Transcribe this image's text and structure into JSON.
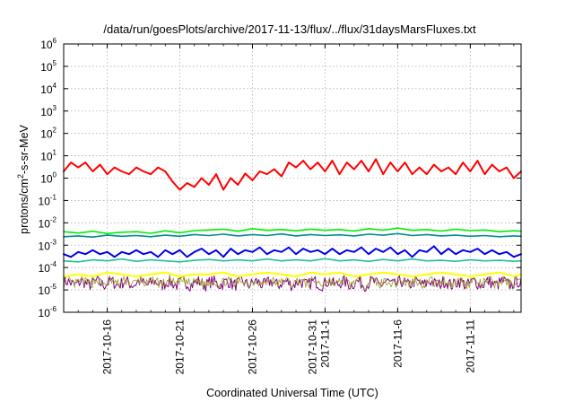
{
  "chart_data": {
    "type": "line",
    "title": "/data/run/goesPlots/archive/2017-11-13/flux/../flux/31daysMarsFluxes.txt",
    "xlabel": "Coordinated Universal Time (UTC)",
    "ylabel_main": "protons/cm",
    "ylabel_sup": "2",
    "ylabel_tail": "-s-sr-MeV",
    "yscale": "log",
    "ylim_exp": [
      -6,
      6
    ],
    "y_tick_base": "10",
    "y_tick_exponents": [
      "-6",
      "-5",
      "-4",
      "-3",
      "-2",
      "-1",
      "0",
      "1",
      "2",
      "3",
      "4",
      "5",
      "6"
    ],
    "x_range_days": [
      0,
      31.5
    ],
    "grid": true,
    "x_ticks": [
      {
        "day": 3,
        "lines": [
          "2017-10-16"
        ]
      },
      {
        "day": 8,
        "lines": [
          "2017-10-21"
        ]
      },
      {
        "day": 13,
        "lines": [
          "2017-10-26"
        ]
      },
      {
        "day": 18,
        "lines": [
          "2017-10-31",
          "2017-11-1"
        ]
      },
      {
        "day": 23,
        "lines": [
          "2017-11-6"
        ]
      },
      {
        "day": 28,
        "lines": [
          "2017-11-11"
        ]
      }
    ],
    "series": [
      {
        "color": "#ff0000",
        "width": 2,
        "x": [
          0,
          0.5,
          1,
          1.5,
          2,
          2.5,
          3,
          3.5,
          4,
          4.5,
          5,
          5.5,
          6,
          6.5,
          7,
          7.5,
          8,
          8.5,
          9,
          9.5,
          10,
          10.5,
          11,
          11.5,
          12,
          12.5,
          13,
          13.5,
          14,
          14.5,
          15,
          15.5,
          16,
          16.5,
          17,
          17.5,
          18,
          18.5,
          19,
          19.5,
          20,
          20.5,
          21,
          21.5,
          22,
          22.5,
          23,
          23.5,
          24,
          24.5,
          25,
          25.5,
          26,
          26.5,
          27,
          27.5,
          28,
          28.5,
          29,
          29.5,
          30,
          30.5,
          31,
          31.5
        ],
        "y": [
          2,
          5,
          3,
          5,
          2,
          4,
          1.5,
          3,
          2,
          1.5,
          3,
          2,
          1.5,
          3,
          2,
          0.7,
          0.3,
          0.6,
          0.4,
          1,
          0.5,
          1.5,
          0.3,
          1,
          0.5,
          1.6,
          0.8,
          2,
          1.5,
          2.5,
          1.2,
          5,
          3,
          6,
          2.5,
          5,
          2,
          6,
          1.5,
          5,
          2.5,
          6,
          2,
          7,
          1.5,
          5,
          2,
          5,
          1.5,
          3,
          1.5,
          4,
          2,
          3,
          1.5,
          5,
          2,
          6,
          1.5,
          4,
          2,
          3,
          1,
          2
        ]
      },
      {
        "color": "#00ee00",
        "width": 1.6,
        "x": [
          0,
          1,
          2,
          3,
          4,
          5,
          6,
          7,
          8,
          9,
          10,
          11,
          12,
          13,
          14,
          15,
          16,
          17,
          18,
          19,
          20,
          21,
          22,
          23,
          24,
          25,
          26,
          27,
          28,
          29,
          30,
          31,
          31.5
        ],
        "y": [
          0.004,
          0.0035,
          0.0042,
          0.0033,
          0.0038,
          0.004,
          0.0034,
          0.0044,
          0.0036,
          0.0045,
          0.0048,
          0.0052,
          0.0042,
          0.0055,
          0.0046,
          0.005,
          0.0044,
          0.0052,
          0.0046,
          0.005,
          0.0043,
          0.0055,
          0.0047,
          0.0058,
          0.0046,
          0.005,
          0.0043,
          0.0052,
          0.0045,
          0.0048,
          0.004,
          0.0044,
          0.0042
        ]
      },
      {
        "color": "#008b8b",
        "width": 1.6,
        "x": [
          0,
          1,
          2,
          3,
          4,
          5,
          6,
          7,
          8,
          9,
          10,
          11,
          12,
          13,
          14,
          15,
          16,
          17,
          18,
          19,
          20,
          21,
          22,
          23,
          24,
          25,
          26,
          27,
          28,
          29,
          30,
          31,
          31.5
        ],
        "y": [
          0.0024,
          0.0026,
          0.0023,
          0.0028,
          0.0025,
          0.0027,
          0.0024,
          0.0028,
          0.0025,
          0.003,
          0.0027,
          0.0031,
          0.0026,
          0.003,
          0.0027,
          0.0032,
          0.0026,
          0.003,
          0.0027,
          0.0029,
          0.0026,
          0.0031,
          0.0028,
          0.0033,
          0.0027,
          0.003,
          0.0026,
          0.0028,
          0.0025,
          0.0027,
          0.0024,
          0.0026,
          0.0025
        ]
      },
      {
        "color": "#0000ee",
        "width": 2,
        "x": [
          0,
          0.5,
          1,
          1.5,
          2,
          2.5,
          3,
          3.5,
          4,
          4.5,
          5,
          5.5,
          6,
          6.5,
          7,
          7.5,
          8,
          8.5,
          9,
          9.5,
          10,
          10.5,
          11,
          11.5,
          12,
          12.5,
          13,
          13.5,
          14,
          14.5,
          15,
          15.5,
          16,
          16.5,
          17,
          17.5,
          18,
          18.5,
          19,
          19.5,
          20,
          20.5,
          21,
          21.5,
          22,
          22.5,
          23,
          23.5,
          24,
          24.5,
          25,
          25.5,
          26,
          26.5,
          27,
          27.5,
          28,
          28.5,
          29,
          29.5,
          30,
          30.5,
          31,
          31.5
        ],
        "y": [
          0.0004,
          0.0003,
          0.0005,
          0.0004,
          0.0006,
          0.0004,
          0.0005,
          0.0003,
          0.0005,
          0.0004,
          0.0006,
          0.0004,
          0.0005,
          0.0003,
          0.0006,
          0.0004,
          0.0006,
          0.0003,
          0.0005,
          0.0007,
          0.0004,
          0.0006,
          0.0003,
          0.0007,
          0.0004,
          0.0006,
          0.0005,
          0.0008,
          0.0004,
          0.0006,
          0.0005,
          0.0008,
          0.0004,
          0.0007,
          0.0005,
          0.0006,
          0.0004,
          0.0007,
          0.0004,
          0.0006,
          0.0005,
          0.0008,
          0.0004,
          0.0007,
          0.0005,
          0.0008,
          0.0004,
          0.0006,
          0.0003,
          0.0006,
          0.0005,
          0.0009,
          0.0004,
          0.0007,
          0.0004,
          0.0006,
          0.0005,
          0.0007,
          0.0004,
          0.0006,
          0.0004,
          0.0005,
          0.0003,
          0.0004
        ]
      },
      {
        "color": "#20c0a0",
        "width": 1.6,
        "x": [
          0,
          1,
          2,
          3,
          4,
          5,
          6,
          7,
          8,
          9,
          10,
          11,
          12,
          13,
          14,
          15,
          16,
          17,
          18,
          19,
          20,
          21,
          22,
          23,
          24,
          25,
          26,
          27,
          28,
          29,
          30,
          31,
          31.5
        ],
        "y": [
          0.0002,
          0.00018,
          0.00022,
          0.0002,
          0.00024,
          0.00019,
          0.00022,
          0.0002,
          0.00018,
          0.00021,
          0.00023,
          0.0002,
          0.00022,
          0.0002,
          0.00024,
          0.0002,
          0.00022,
          0.0002,
          0.00025,
          0.0002,
          0.00022,
          0.00019,
          0.00023,
          0.0002,
          0.00024,
          0.0002,
          0.00021,
          0.00019,
          0.00022,
          0.0002,
          0.00021,
          0.00019,
          0.0002
        ]
      },
      {
        "color": "#ffff00",
        "width": 2,
        "x": [
          0,
          1,
          2,
          3,
          4,
          5,
          6,
          7,
          8,
          9,
          10,
          11,
          12,
          13,
          14,
          15,
          16,
          17,
          18,
          19,
          20,
          21,
          22,
          23,
          24,
          25,
          26,
          27,
          28,
          29,
          30,
          31,
          31.5
        ],
        "y": [
          4e-05,
          5e-05,
          4e-05,
          6e-05,
          5e-05,
          4e-05,
          5e-05,
          6e-05,
          4e-05,
          5e-05,
          5e-05,
          6e-05,
          4e-05,
          5e-05,
          6e-05,
          5e-05,
          4e-05,
          6e-05,
          5e-05,
          6e-05,
          4e-05,
          5e-05,
          6e-05,
          5e-05,
          4e-05,
          5e-05,
          6e-05,
          5e-05,
          4e-05,
          5e-05,
          6e-05,
          4e-05,
          5e-05
        ]
      }
    ],
    "noisy_series": [
      {
        "color": "#800080",
        "width": 1,
        "center": 2e-05,
        "spread_decades": 0.28,
        "x_start": 0,
        "x_end": 31.5,
        "samples": 380,
        "seed": 7
      },
      {
        "color": "#9a9a2a",
        "width": 0.8,
        "center": 2.2e-05,
        "spread_decades": 0.22,
        "x_start": 0,
        "x_end": 31.5,
        "samples": 380,
        "seed": 13
      }
    ]
  }
}
